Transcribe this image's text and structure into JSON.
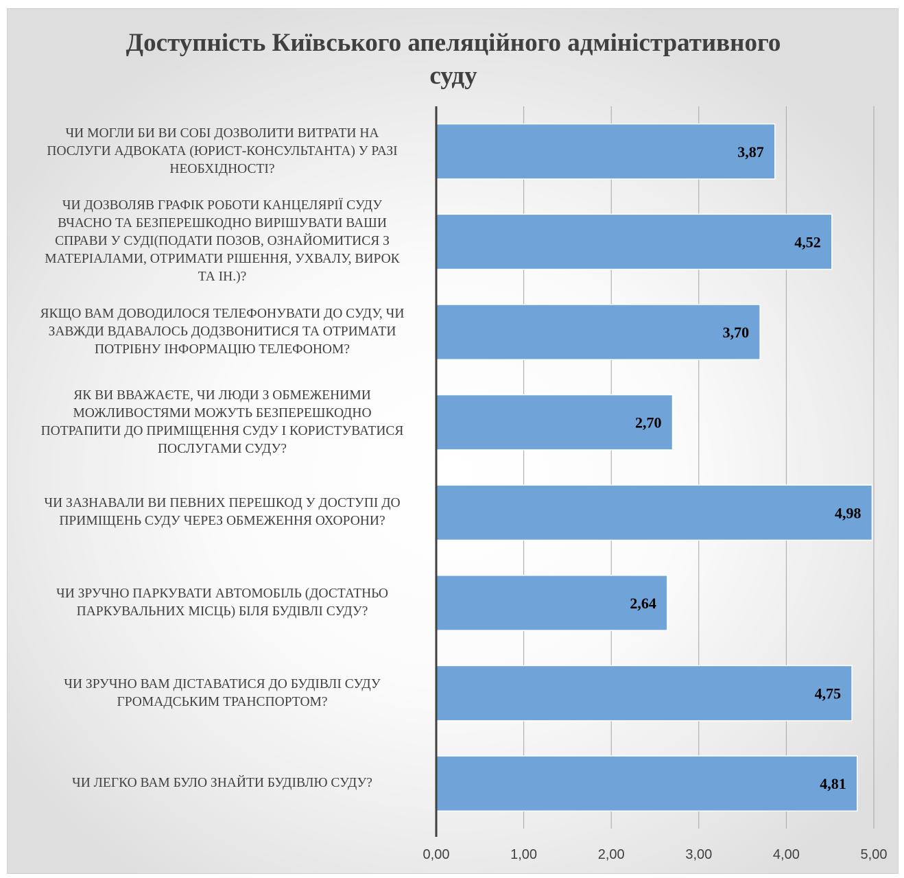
{
  "chart_data": {
    "type": "bar",
    "orientation": "horizontal",
    "title": "Доступність Київського апеляційного адміністративного суду",
    "categories": [
      "ЧИ МОГЛИ БИ ВИ СОБІ ДОЗВОЛИТИ ВИТРАТИ НА ПОСЛУГИ АДВОКАТА (ЮРИСТ-КОНСУЛЬТАНТА) У РАЗІ НЕОБХІДНОСТІ?",
      "ЧИ ДОЗВОЛЯВ ГРАФІК РОБОТИ КАНЦЕЛЯРІЇ СУДУ ВЧАСНО ТА БЕЗПЕРЕШКОДНО ВИРІШУВАТИ ВАШИ СПРАВИ У СУДІ(ПОДАТИ ПОЗОВ, ОЗНАЙОМИТИСЯ З МАТЕРІАЛАМИ, ОТРИМАТИ РІШЕННЯ, УХВАЛУ, ВИРОК ТА ІН.)?",
      "ЯКЩО ВАМ ДОВОДИЛОСЯ ТЕЛЕФОНУВАТИ ДО СУДУ, ЧИ ЗАВЖДИ ВДАВАЛОСЬ ДОДЗВОНИТИСЯ ТА ОТРИМАТИ ПОТРІБНУ ІНФОРМАЦІЮ ТЕЛЕФОНОМ?",
      "ЯК ВИ ВВАЖАЄТЕ, ЧИ ЛЮДИ З ОБМЕЖЕНИМИ МОЖЛИВОСТЯМИ МОЖУТЬ БЕЗПЕРЕШКОДНО ПОТРАПИТИ ДО ПРИМІЩЕННЯ СУДУ І КОРИСТУВАТИСЯ ПОСЛУГАМИ СУДУ?",
      "ЧИ ЗАЗНАВАЛИ ВИ ПЕВНИХ ПЕРЕШКОД У ДОСТУПІ ДО ПРИМІЩЕНЬ СУДУ ЧЕРЕЗ ОБМЕЖЕННЯ ОХОРОНИ?",
      "ЧИ ЗРУЧНО ПАРКУВАТИ АВТОМОБІЛЬ (ДОСТАТНЬО ПАРКУВАЛЬНИХ МІСЦЬ) БІЛЯ БУДІВЛІ СУДУ?",
      "ЧИ ЗРУЧНО ВАМ ДІСТАВАТИСЯ ДО БУДІВЛІ СУДУ ГРОМАДСЬКИМ ТРАНСПОРТОМ?",
      "ЧИ ЛЕГКО ВАМ БУЛО ЗНАЙТИ БУДІВЛЮ СУДУ?"
    ],
    "category_lines": [
      [
        "ЧИ МОГЛИ БИ ВИ СОБІ ДОЗВОЛИТИ ВИТРАТИ НА",
        "ПОСЛУГИ АДВОКАТА (ЮРИСТ-КОНСУЛЬТАНТА) У РАЗІ",
        "НЕОБХІДНОСТІ?"
      ],
      [
        "ЧИ ДОЗВОЛЯВ ГРАФІК РОБОТИ КАНЦЕЛЯРІЇ СУДУ",
        "ВЧАСНО ТА БЕЗПЕРЕШКОДНО ВИРІШУВАТИ ВАШИ",
        "СПРАВИ У СУДІ(ПОДАТИ ПОЗОВ, ОЗНАЙОМИТИСЯ З",
        "МАТЕРІАЛАМИ, ОТРИМАТИ РІШЕННЯ, УХВАЛУ, ВИРОК",
        "ТА ІН.)?"
      ],
      [
        "ЯКЩО ВАМ ДОВОДИЛОСЯ ТЕЛЕФОНУВАТИ ДО СУДУ, ЧИ",
        "ЗАВЖДИ ВДАВАЛОСЬ ДОДЗВОНИТИСЯ ТА ОТРИМАТИ",
        "ПОТРІБНУ ІНФОРМАЦІЮ ТЕЛЕФОНОМ?"
      ],
      [
        "ЯК ВИ ВВАЖАЄТЕ, ЧИ ЛЮДИ З ОБМЕЖЕНИМИ",
        "МОЖЛИВОСТЯМИ МОЖУТЬ БЕЗПЕРЕШКОДНО",
        "ПОТРАПИТИ ДО ПРИМІЩЕННЯ СУДУ І КОРИСТУВАТИСЯ",
        "ПОСЛУГАМИ СУДУ?"
      ],
      [
        "ЧИ ЗАЗНАВАЛИ ВИ ПЕВНИХ ПЕРЕШКОД У ДОСТУПІ ДО",
        "ПРИМІЩЕНЬ СУДУ ЧЕРЕЗ ОБМЕЖЕННЯ ОХОРОНИ?"
      ],
      [
        "ЧИ ЗРУЧНО ПАРКУВАТИ АВТОМОБІЛЬ (ДОСТАТНЬО",
        "ПАРКУВАЛЬНИХ МІСЦЬ) БІЛЯ БУДІВЛІ СУДУ?"
      ],
      [
        "ЧИ ЗРУЧНО ВАМ ДІСТАВАТИСЯ ДО БУДІВЛІ СУДУ",
        "ГРОМАДСЬКИМ ТРАНСПОРТОМ?"
      ],
      [
        "ЧИ ЛЕГКО ВАМ БУЛО ЗНАЙТИ БУДІВЛЮ СУДУ?"
      ]
    ],
    "values": [
      3.87,
      4.52,
      3.7,
      2.7,
      4.98,
      2.64,
      4.75,
      4.81
    ],
    "data_labels": [
      "3,87",
      "4,52",
      "3,70",
      "2,70",
      "4,98",
      "2,64",
      "4,75",
      "4,81"
    ],
    "x_ticks": [
      0,
      1,
      2,
      3,
      4,
      5
    ],
    "x_tick_labels": [
      "0,00",
      "1,00",
      "2,00",
      "3,00",
      "4,00",
      "5,00"
    ],
    "xlim": [
      0,
      5
    ],
    "xlabel": "",
    "ylabel": "",
    "grid": "vertical",
    "legend": "none",
    "bar_color": "#70a3d8",
    "bar_border_color": "#ffffff",
    "gridline_color": "#a6a6a6",
    "axis_color": "#404040",
    "text_color": "#404040",
    "label_color": "#000000"
  }
}
